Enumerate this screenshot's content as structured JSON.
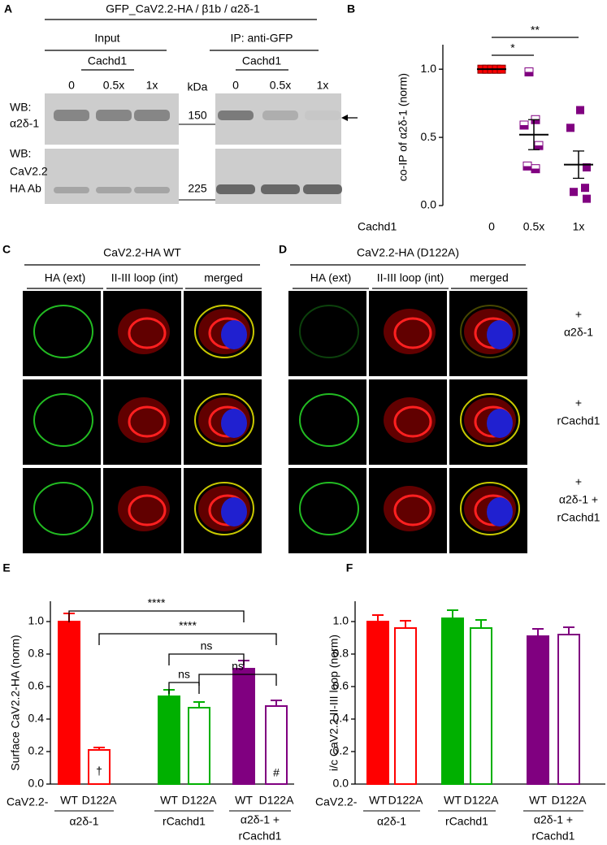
{
  "panel_labels": [
    "A",
    "B",
    "C",
    "D",
    "E",
    "F"
  ],
  "blot": {
    "title": "GFP_CaV2.2-HA / β1b / α2δ-1",
    "groups": [
      "Input",
      "IP: anti-GFP"
    ],
    "condition": "Cachd1",
    "lanes": [
      "0",
      "0.5x",
      "1x"
    ],
    "unit": "kDa",
    "markers": [
      150,
      225
    ],
    "rows": [
      [
        "WB:",
        "α2δ-1"
      ],
      [
        "WB:",
        "CaV2.2",
        "HA Ab"
      ]
    ]
  },
  "imaging": {
    "titles": [
      "CaV2.2-HA  WT",
      "CaV2.2-HA  (D122A)"
    ],
    "columns": [
      "HA (ext)",
      "II-III loop (int)",
      "merged"
    ],
    "rows": [
      [
        "+",
        "α2δ-1"
      ],
      [
        "+",
        "rCachd1"
      ],
      [
        "+",
        "α2δ-1 +",
        "rCachd1"
      ]
    ]
  },
  "chart_data": [
    {
      "type": "scatter",
      "ylabel": "co-IP of α2δ-1 (norm)",
      "xlabel": "Cachd1",
      "categories": [
        "0",
        "0.5x",
        "1x"
      ],
      "points": [
        [
          1,
          1,
          1,
          1,
          1
        ],
        [
          0.98,
          0.63,
          0.59,
          0.44,
          0.29,
          0.27
        ],
        [
          0.7,
          0.57,
          0.28,
          0.13,
          0.1,
          0.05
        ]
      ],
      "means": [
        1,
        0.52,
        0.3
      ],
      "errors": [
        0,
        0.11,
        0.1
      ],
      "colors": [
        "#ff0000",
        "#800080",
        "#800080"
      ],
      "ylim": [
        0,
        1.15
      ],
      "yticks": [
        {
          "value": 0,
          "label": "0.0"
        },
        0.5,
        {
          "value": 1,
          "label": "1.0"
        }
      ],
      "annotations": [
        "*",
        "**"
      ]
    },
    {
      "type": "bar",
      "ylabel": "Surface CaV2.2-HA (norm)",
      "x_prefix": "CaV2.2-",
      "groups": [
        "α2δ-1",
        "rCachd1",
        [
          "α2δ-1 +",
          "rCachd1"
        ]
      ],
      "colors": [
        "#ff0000",
        "#00b000",
        "#800080"
      ],
      "series": [
        {
          "name": "WT",
          "filled": true,
          "values": [
            1.0,
            0.54,
            0.71
          ],
          "errors": [
            0.05,
            0.04,
            0.05
          ]
        },
        {
          "name": "D122A",
          "filled": false,
          "values": [
            0.21,
            0.47,
            0.48
          ],
          "errors": [
            0.015,
            0.035,
            0.035
          ]
        }
      ],
      "ylim": [
        0,
        1.1
      ],
      "yticks": [
        {
          "value": 0,
          "label": "0.0"
        },
        0.2,
        0.4,
        0.6,
        0.8,
        {
          "value": 1,
          "label": "1.0"
        }
      ],
      "annotations": [
        "****",
        "****",
        "ns",
        "ns",
        "ns"
      ],
      "symbols": [
        "†",
        "#"
      ]
    },
    {
      "type": "bar",
      "ylabel": "i/c CaV2.2 II-III loop (norm)",
      "x_prefix": "CaV2.2-",
      "groups": [
        "α2δ-1",
        "rCachd1",
        [
          "α2δ-1 +",
          "rCachd1"
        ]
      ],
      "colors": [
        "#ff0000",
        "#00b000",
        "#800080"
      ],
      "series": [
        {
          "name": "WT",
          "filled": true,
          "values": [
            1.0,
            1.02,
            0.91
          ],
          "errors": [
            0.04,
            0.05,
            0.045
          ]
        },
        {
          "name": "D122A",
          "filled": false,
          "values": [
            0.96,
            0.96,
            0.92
          ],
          "errors": [
            0.045,
            0.05,
            0.045
          ]
        }
      ],
      "ylim": [
        0,
        1.1
      ],
      "yticks": [
        {
          "value": 0,
          "label": "0.0"
        },
        0.2,
        0.4,
        0.6,
        0.8,
        {
          "value": 1,
          "label": "1.0"
        }
      ]
    }
  ]
}
